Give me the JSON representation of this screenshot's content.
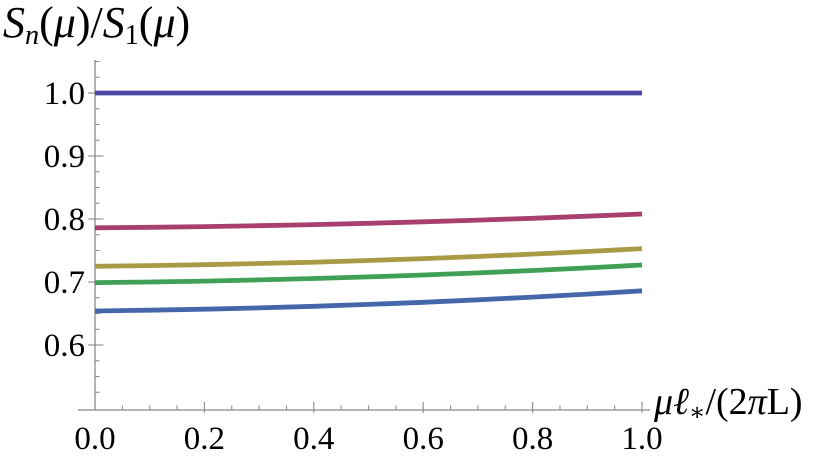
{
  "figure": {
    "background": "#ffffff",
    "axis_color": "#8a8a8a",
    "tick_label_color": "#000000"
  },
  "chart_data": {
    "type": "line",
    "title": "",
    "y_label_text": "S_n(mu)/S_1(mu)",
    "x_label_text": "mu*l_*/(2 pi L)",
    "y_label": {
      "parts": [
        {
          "t": "S",
          "style": "i"
        },
        {
          "t": "n",
          "style": "i sub"
        },
        {
          "t": "(",
          "style": ""
        },
        {
          "t": "μ",
          "style": "i"
        },
        {
          "t": ")/",
          "style": ""
        },
        {
          "t": "S",
          "style": "i"
        },
        {
          "t": "1",
          "style": "sub"
        },
        {
          "t": "(",
          "style": ""
        },
        {
          "t": "μ",
          "style": "i"
        },
        {
          "t": ")",
          "style": ""
        }
      ]
    },
    "x_label": {
      "parts": [
        {
          "t": "μℓ",
          "style": "i"
        },
        {
          "t": "∗",
          "style": "sub"
        },
        {
          "t": "/(2",
          "style": ""
        },
        {
          "t": "π",
          "style": "i"
        },
        {
          "t": "L)",
          "style": ""
        }
      ]
    },
    "x": [
      0,
      0.1,
      0.2,
      0.3,
      0.4,
      0.5,
      0.6,
      0.7,
      0.8,
      0.9,
      1.0
    ],
    "series": [
      {
        "name": "curve-1",
        "color": "#4B48A6",
        "values": [
          1.0,
          1.0,
          1.0,
          1.0,
          1.0,
          1.0,
          1.0,
          1.0,
          1.0,
          1.0,
          1.0
        ]
      },
      {
        "name": "curve-2",
        "color": "#A83F6F",
        "values": [
          0.786,
          0.7868,
          0.7879,
          0.7894,
          0.7911,
          0.7932,
          0.7955,
          0.7982,
          0.8011,
          0.8044,
          0.808
        ]
      },
      {
        "name": "curve-3",
        "color": "#A99A45",
        "values": [
          0.725,
          0.726,
          0.7275,
          0.7293,
          0.7315,
          0.7341,
          0.7371,
          0.7405,
          0.7443,
          0.7484,
          0.753
        ]
      },
      {
        "name": "curve-4",
        "color": "#3FA056",
        "values": [
          0.699,
          0.7,
          0.7015,
          0.7033,
          0.7055,
          0.7081,
          0.7111,
          0.7145,
          0.7183,
          0.7224,
          0.727
        ]
      },
      {
        "name": "curve-5",
        "color": "#4467AC",
        "values": [
          0.654,
          0.6552,
          0.6568,
          0.6589,
          0.6614,
          0.6644,
          0.6678,
          0.6717,
          0.676,
          0.6808,
          0.686
        ]
      }
    ],
    "x_ticks": [
      {
        "v": 0.0,
        "label": "0.0"
      },
      {
        "v": 0.2,
        "label": "0.2"
      },
      {
        "v": 0.4,
        "label": "0.4"
      },
      {
        "v": 0.6,
        "label": "0.6"
      },
      {
        "v": 0.8,
        "label": "0.8"
      },
      {
        "v": 1.0,
        "label": "1.0"
      }
    ],
    "y_ticks": [
      {
        "v": 1.0,
        "label": "1.0"
      },
      {
        "v": 0.9,
        "label": "0.9"
      },
      {
        "v": 0.8,
        "label": "0.8"
      },
      {
        "v": 0.7,
        "label": "0.7"
      },
      {
        "v": 0.6,
        "label": "0.6"
      }
    ],
    "x_minor_step": 0.05,
    "y_minor_step": 0.025,
    "xlim": [
      0,
      1.01
    ],
    "ylim": [
      0.497,
      1.052
    ],
    "grid": false,
    "legend": null
  }
}
